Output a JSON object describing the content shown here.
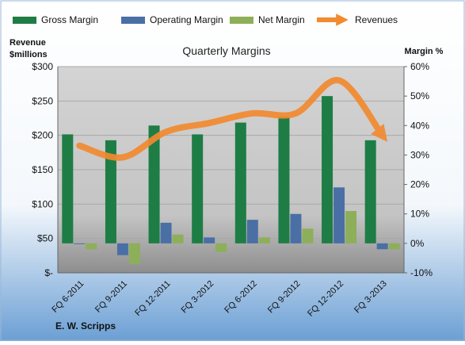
{
  "chart_data": {
    "type": "bar",
    "title": "Quarterly Margins",
    "company": "E. W. Scripps",
    "left_axis": {
      "label_line1": "Revenue",
      "label_line2": "$millions",
      "ticks": [
        "$-",
        "$50",
        "$100",
        "$150",
        "$200",
        "$250",
        "$300"
      ],
      "ylim": [
        0,
        300
      ]
    },
    "right_axis": {
      "label": "Margin %",
      "ticks": [
        "-10%",
        "0%",
        "10%",
        "20%",
        "30%",
        "40%",
        "50%",
        "60%"
      ],
      "ylim": [
        -10,
        60
      ]
    },
    "categories": [
      "FQ 6-2011",
      "FQ 9-2011",
      "FQ 12-2011",
      "FQ 3-2012",
      "FQ 6-2012",
      "FQ 9-2012",
      "FQ 12-2012",
      "FQ 3-2013"
    ],
    "series": [
      {
        "name": "Gross Margin",
        "axis": "right",
        "color": "#1E7D45",
        "values": [
          37,
          35,
          40,
          37,
          41,
          43,
          50,
          35
        ]
      },
      {
        "name": "Operating Margin",
        "axis": "right",
        "color": "#4A6FA5",
        "values": [
          0,
          -4,
          7,
          2,
          8,
          10,
          19,
          -2
        ]
      },
      {
        "name": "Net Margin",
        "axis": "right",
        "color": "#8DAF5A",
        "values": [
          -2,
          -7,
          3,
          -3,
          2,
          5,
          11,
          -2
        ]
      },
      {
        "name": "Revenues",
        "axis": "left",
        "color": "#F28A30",
        "type": "line",
        "values": [
          185,
          168,
          205,
          218,
          232,
          232,
          280,
          200
        ]
      }
    ],
    "grid": true,
    "legend_position": "top"
  }
}
